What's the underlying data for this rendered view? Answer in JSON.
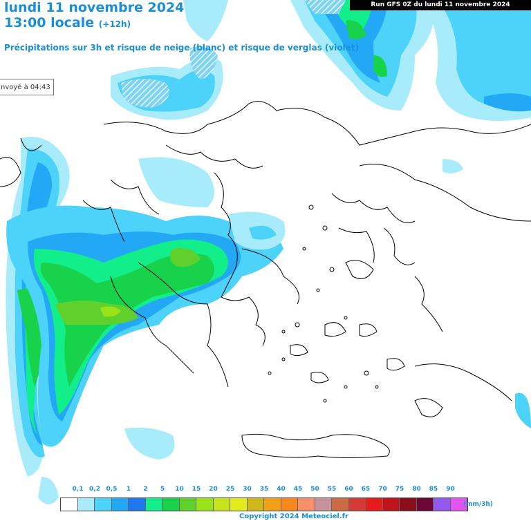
{
  "header": {
    "date_line": "lundi 11 novembre 2024",
    "time_line": "13:00 locale",
    "offset": "(+12h)",
    "description": "Précipitations sur 3h et risque de neige (blanc) et risque de verglas (violet)"
  },
  "run_info": "Run GFS 0Z du lundi 11 novembre 2024",
  "sent_label": "nvoyé à 04:43",
  "legend": {
    "labels": [
      "0,1",
      "0,2",
      "0,5",
      "1",
      "2",
      "5",
      "10",
      "15",
      "20",
      "25",
      "30",
      "35",
      "40",
      "45",
      "50",
      "55",
      "60",
      "65",
      "70",
      "75",
      "80",
      "85",
      "90"
    ],
    "colors": [
      "#ffffff",
      "#a8ecfb",
      "#4dd2fa",
      "#22a8f5",
      "#1f78f0",
      "#12ef8a",
      "#18d24c",
      "#5fd02c",
      "#9ae21a",
      "#c5e41a",
      "#e2ec1a",
      "#d0b81b",
      "#f29f1a",
      "#f7871e",
      "#f78f6a",
      "#c7939b",
      "#cc6a45",
      "#d63a36",
      "#e61b1b",
      "#c0141b",
      "#8a0f1d",
      "#6b0838",
      "#9258f0",
      "#e154ef"
    ],
    "unit": "(mm/3h)"
  },
  "copyright": "Copyright 2024 Meteociel.fr",
  "map_colors": {
    "light_cyan": "#a8ecfb",
    "cyan": "#4dd2fa",
    "blue": "#22a8f5",
    "deep_blue": "#1f78f0",
    "green_teal": "#12ef8a",
    "green": "#18d24c",
    "yellow_green": "#9ae21a"
  }
}
